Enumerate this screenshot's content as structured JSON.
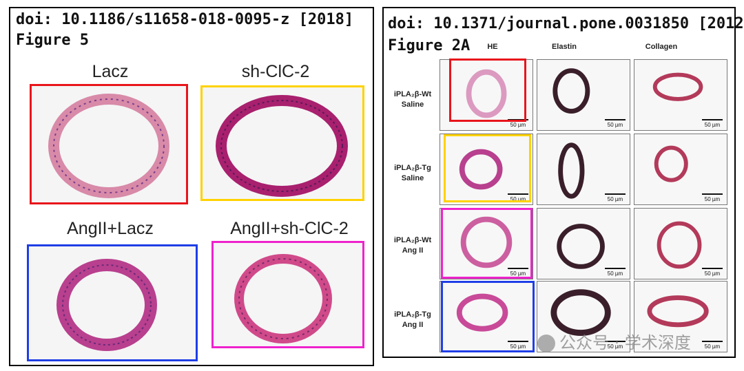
{
  "left": {
    "doi": "doi: 10.1186/s11658-018-0095-z [2018]",
    "figure": "Figure 5",
    "labels": [
      "Lacz",
      "sh-ClC-2",
      "AngII+Lacz",
      "AngII+sh-ClC-2"
    ]
  },
  "right": {
    "doi": "doi: 10.1371/journal.pone.0031850 [2012]",
    "figure": "Figure 2A",
    "columns": [
      "HE",
      "Elastin",
      "Collagen"
    ],
    "rows": [
      {
        "line1": "iPLA₂β-Wt",
        "line2": "Saline"
      },
      {
        "line1": "iPLA₂β-Tg",
        "line2": "Saline"
      },
      {
        "line1": "iPLA₂β-Wt",
        "line2": "Ang II"
      },
      {
        "line1": "iPLA₂β-Tg",
        "line2": "Ang II"
      }
    ],
    "scale_label": "50 µm"
  },
  "watermark": "公众号 · 学术深度",
  "colors": {
    "red": "#e8141b",
    "yellow": "#ffd200",
    "blue": "#1e3ee6",
    "magenta": "#ee22cc",
    "he_stain": "#c0508c",
    "elastin_stain": "#3a1f2a",
    "collagen_stain": "#b33a5a"
  }
}
